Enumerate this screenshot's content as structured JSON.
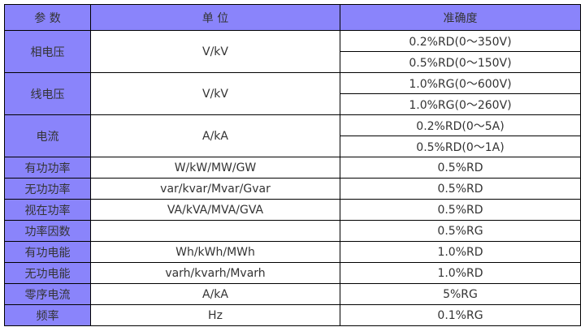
{
  "headers": [
    "参 数",
    "单 位",
    "准确度"
  ],
  "grouped": [
    {
      "param": "相电压",
      "unit": "V/kV",
      "acc": [
        "0.2%RD(0～350V)",
        "0.5%RD(0～150V)"
      ]
    },
    {
      "param": "线电压",
      "unit": "V/kV",
      "acc": [
        "1.0%RG(0～600V)",
        "1.0%RG(0～260V)"
      ]
    },
    {
      "param": "电流",
      "unit": "A/kA",
      "acc": [
        "0.2%RD(0～5A)",
        "0.5%RD(0～1A)"
      ]
    }
  ],
  "rows": [
    {
      "param": "有功功率",
      "unit": "W/kW/MW/GW",
      "acc": "0.5%RD"
    },
    {
      "param": "无功功率",
      "unit": "var/kvar/Mvar/Gvar",
      "acc": "0.5%RD"
    },
    {
      "param": "视在功率",
      "unit": "VA/kVA/MVA/GVA",
      "acc": "0.5%RD"
    },
    {
      "param": "功率因数",
      "unit": "",
      "acc": "0.5%RG"
    },
    {
      "param": "有功电能",
      "unit": "Wh/kWh/MWh",
      "acc": "1.0%RD"
    },
    {
      "param": "无功电能",
      "unit": "varh/kvarh/Mvarh",
      "acc": "1.0%RD"
    },
    {
      "param": "零序电流",
      "unit": "A/kA",
      "acc": "5%RG"
    },
    {
      "param": "频率",
      "unit": "Hz",
      "acc": "0.1%RG"
    }
  ],
  "colors": {
    "header_bg": "#8a84fb"
  }
}
